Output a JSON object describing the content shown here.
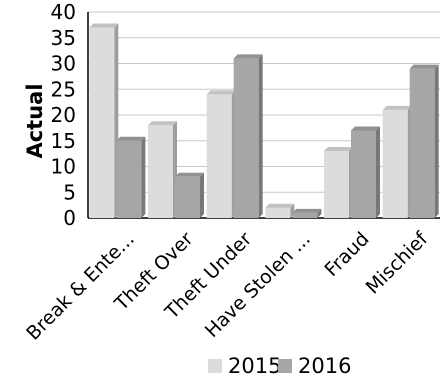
{
  "chart_data": {
    "type": "bar",
    "ylabel": "Actual",
    "ylim": [
      0,
      40
    ],
    "yticks": [
      0,
      5,
      10,
      15,
      20,
      25,
      30,
      35,
      40
    ],
    "categories": [
      "Break & Ente...",
      "Theft Over",
      "Theft Under",
      "Have Stolen ...",
      "Fraud",
      "Mischief"
    ],
    "series": [
      {
        "name": "2015",
        "values": [
          37,
          18,
          24,
          2,
          13,
          21
        ],
        "color": "#dcdcdc"
      },
      {
        "name": "2016",
        "values": [
          15,
          8,
          31,
          1,
          17,
          29
        ],
        "color": "#a6a6a6"
      }
    ],
    "grid": true,
    "legend": "bottom-center"
  }
}
